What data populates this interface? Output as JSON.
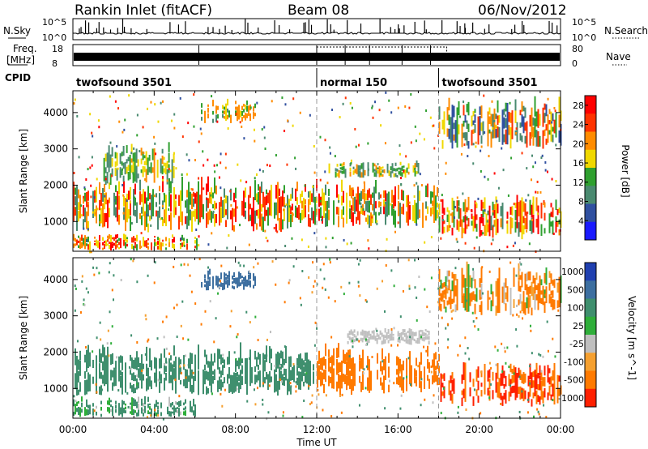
{
  "header": {
    "title": "Rankin Inlet (fitACF)",
    "beam": "Beam 08",
    "date": "06/Nov/2012"
  },
  "panels": {
    "nsky_label": "N.Sky",
    "nsearch_label": "N.Search",
    "nsky_ticks": [
      "10^5",
      "10^0"
    ],
    "nsearch_ticks": [
      "10^5",
      "10^0"
    ],
    "freq_label_1": "Freq.",
    "freq_label_2": "[MHz]",
    "freq_ticks": [
      "18",
      "8"
    ],
    "nave_label": "Nave",
    "nave_ticks": [
      "80",
      "0"
    ],
    "cpid_label": "CPID"
  },
  "cpid_segments": [
    {
      "name": "twofsound 3501",
      "start_hour": 0,
      "end_hour": 12
    },
    {
      "name": "normal 150",
      "start_hour": 12,
      "end_hour": 18
    },
    {
      "name": "twofsound 3501",
      "start_hour": 18,
      "end_hour": 24
    }
  ],
  "chart_data": [
    {
      "type": "heatmap",
      "title": "",
      "xlabel": "",
      "ylabel": "Slant Range [km]",
      "xlim": [
        0,
        24
      ],
      "ylim": [
        180,
        4600
      ],
      "yticks": [
        1000,
        2000,
        3000,
        4000
      ],
      "colorbar_label": "Power [dB]",
      "colorbar_ticks": [
        4,
        8,
        12,
        16,
        20,
        24,
        28
      ],
      "colorbar_range": [
        0,
        30
      ],
      "colors": [
        "#1a1aff",
        "#3050a0",
        "#4a8a70",
        "#2fa02f",
        "#f0d800",
        "#ff8c00",
        "#ff3300",
        "#ff0000"
      ],
      "echo_regions": [
        {
          "x0": 0,
          "x1": 6.2,
          "y0": 200,
          "y1": 700,
          "v0": 12,
          "v1": 30
        },
        {
          "x0": 0,
          "x1": 12,
          "y0": 700,
          "y1": 2300,
          "v0": 8,
          "v1": 30
        },
        {
          "x0": 1.5,
          "x1": 5,
          "y0": 2000,
          "y1": 3200,
          "v0": 8,
          "v1": 20
        },
        {
          "x0": 6.3,
          "x1": 9,
          "y0": 3700,
          "y1": 4400,
          "v0": 8,
          "v1": 22
        },
        {
          "x0": 12,
          "x1": 18,
          "y0": 800,
          "y1": 2200,
          "v0": 8,
          "v1": 30
        },
        {
          "x0": 12.5,
          "x1": 17,
          "y0": 2200,
          "y1": 2700,
          "v0": 8,
          "v1": 22
        },
        {
          "x0": 18,
          "x1": 24,
          "y0": 500,
          "y1": 1800,
          "v0": 10,
          "v1": 30
        },
        {
          "x0": 18,
          "x1": 24,
          "y0": 3000,
          "y1": 4500,
          "v0": 4,
          "v1": 26
        }
      ]
    },
    {
      "type": "heatmap",
      "title": "",
      "xlabel": "Time UT",
      "ylabel": "Slant Range [km]",
      "xlim": [
        0,
        24
      ],
      "ylim": [
        180,
        4600
      ],
      "xticks": [
        "00:00",
        "04:00",
        "08:00",
        "12:00",
        "16:00",
        "20:00",
        "00:00"
      ],
      "yticks": [
        1000,
        2000,
        3000,
        4000
      ],
      "colorbar_label": "Velocity [m s^-1]",
      "colorbar_ticks": [
        "1000",
        "500",
        "100",
        "25",
        "-25",
        "-100",
        "-500",
        "-1000"
      ],
      "colors": [
        "#2040b0",
        "#3d6fa0",
        "#3f8f6e",
        "#2fae3a",
        "#bfbfbf",
        "#f5a030",
        "#ff7a00",
        "#ff2000"
      ],
      "echo_regions": [
        {
          "x0": 0,
          "x1": 12,
          "y0": 800,
          "y1": 2300,
          "v0": 100,
          "v1": 500
        },
        {
          "x0": 0,
          "x1": 6,
          "y0": 200,
          "y1": 800,
          "v0": -25,
          "v1": 500
        },
        {
          "x0": 12,
          "x1": 18,
          "y0": 800,
          "y1": 2300,
          "v0": -500,
          "v1": -100
        },
        {
          "x0": 13.5,
          "x1": 17.5,
          "y0": 2200,
          "y1": 2700,
          "v0": -25,
          "v1": 25
        },
        {
          "x0": 18,
          "x1": 24,
          "y0": 500,
          "y1": 1800,
          "v0": -1000,
          "v1": -100
        },
        {
          "x0": 18,
          "x1": 24,
          "y0": 3000,
          "y1": 4500,
          "v0": -500,
          "v1": 100
        },
        {
          "x0": 6.3,
          "x1": 9,
          "y0": 3700,
          "y1": 4300,
          "v0": 500,
          "v1": 1000
        }
      ]
    }
  ]
}
